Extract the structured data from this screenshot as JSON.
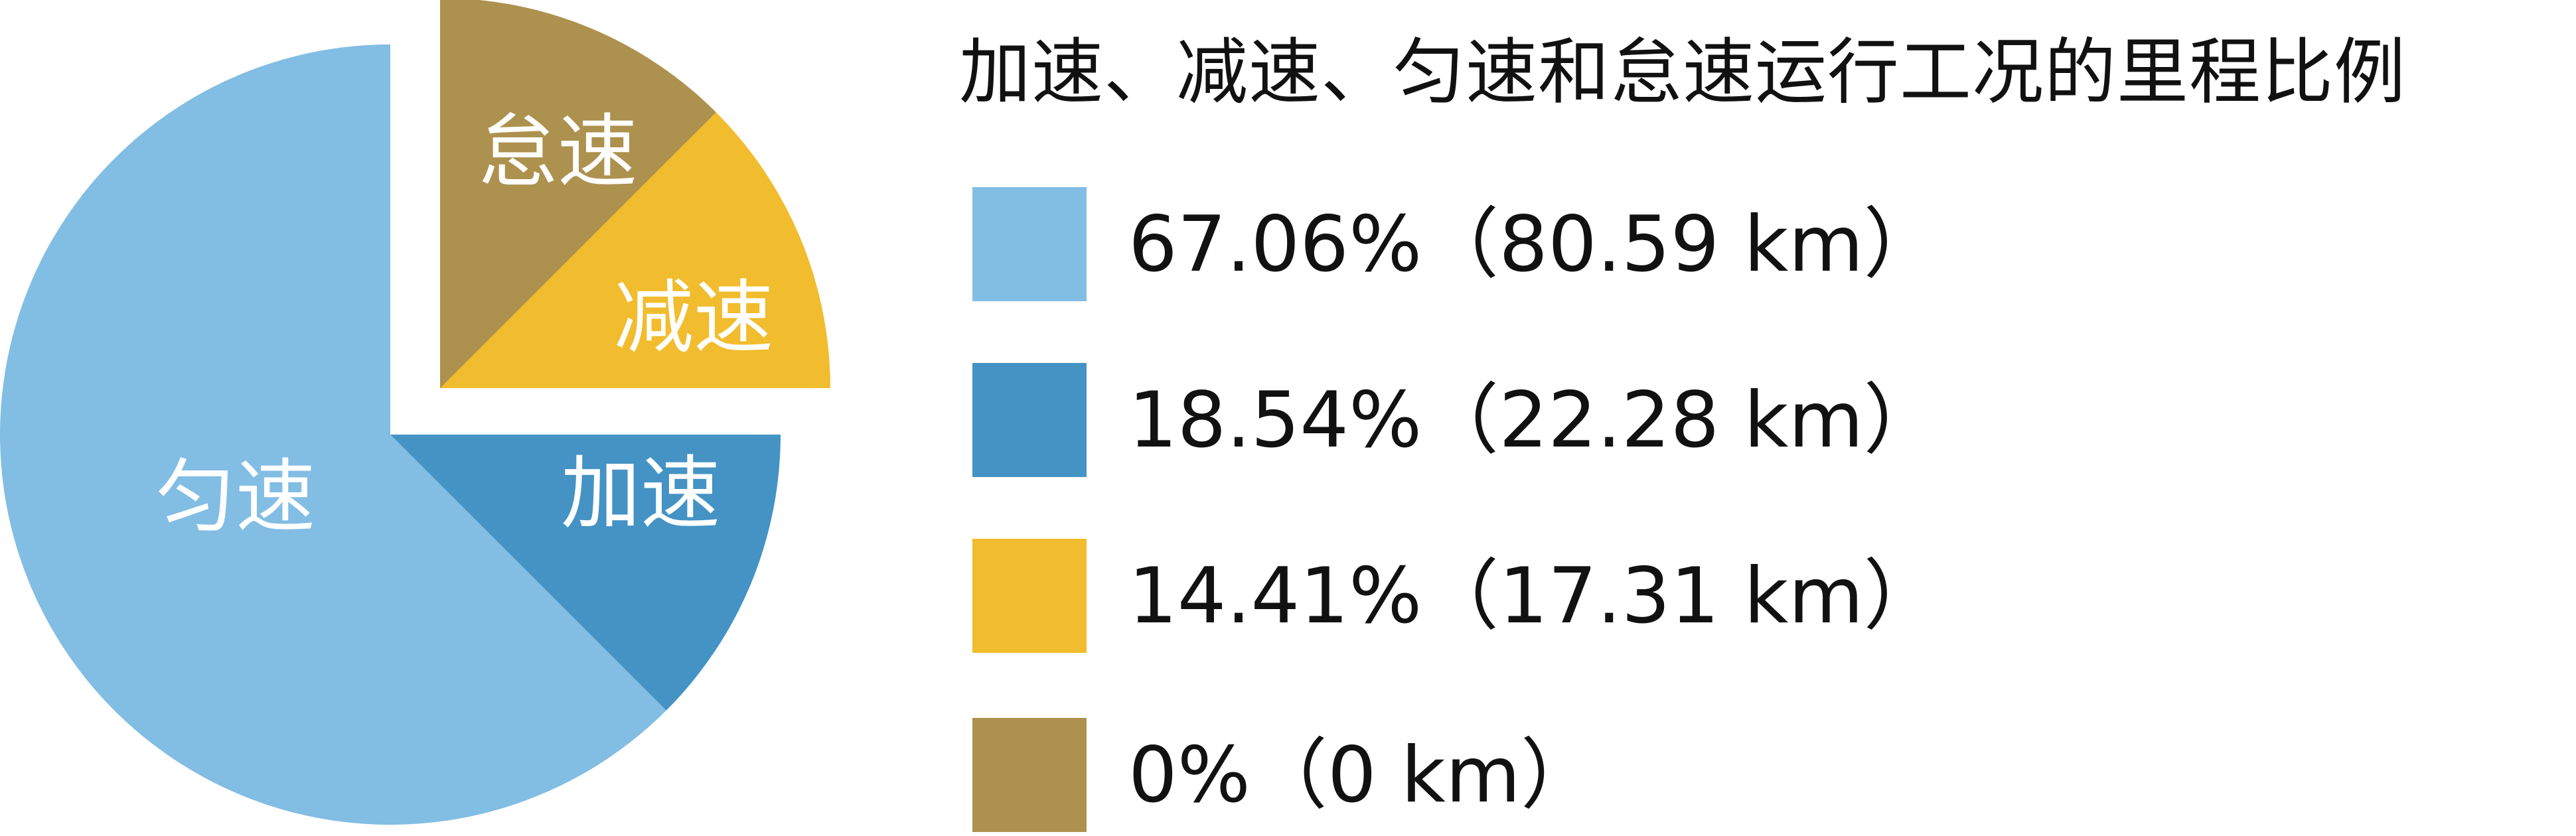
{
  "chart_data": {
    "type": "pie",
    "title": "加速、减速、匀速和怠速运行工况的里程比例",
    "slices": [
      {
        "label": "匀速",
        "percent": 67.06,
        "distance_km": 80.59,
        "color": "#82BDE4",
        "legend": "67.06%（80.59 km）"
      },
      {
        "label": "加速",
        "percent": 18.54,
        "distance_km": 22.28,
        "color": "#4493C4",
        "legend": "18.54%（22.28 km）"
      },
      {
        "label": "减速",
        "percent": 14.41,
        "distance_km": 17.31,
        "color": "#F1BC2D",
        "legend": "14.41%（17.31 km）"
      },
      {
        "label": "怠速",
        "percent": 0,
        "distance_km": 0,
        "color": "#AD914E",
        "legend": "0%（0 km）"
      }
    ],
    "legend_position": "right"
  }
}
